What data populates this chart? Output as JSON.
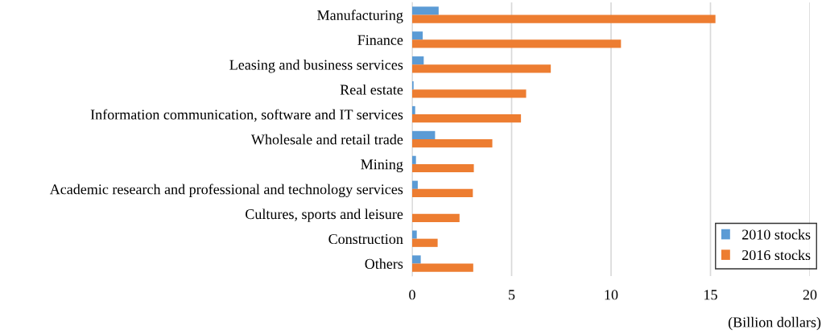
{
  "chart_data": {
    "type": "bar",
    "orientation": "horizontal",
    "xlabel": "(Billion dollars)",
    "categories": [
      "Manufacturing",
      "Finance",
      "Leasing and business services",
      "Real estate",
      "Information communication, software and IT services",
      "Wholesale and retail trade",
      "Mining",
      "Academic research and professional and technology services",
      "Cultures, sports and leisure",
      "Construction",
      "Others"
    ],
    "series": [
      {
        "name": "2010 stocks",
        "color": "#5b9bd5",
        "values": [
          1.33,
          0.53,
          0.58,
          0.07,
          0.15,
          1.15,
          0.19,
          0.28,
          null,
          0.23,
          0.43
        ]
      },
      {
        "name": "2016 stocks",
        "color": "#ed7d31",
        "values": [
          15.25,
          10.5,
          6.97,
          5.73,
          5.47,
          4.03,
          3.1,
          3.05,
          2.38,
          1.28,
          3.07
        ]
      }
    ],
    "xlim": [
      0,
      20
    ],
    "xticks": [
      0,
      5,
      10,
      15,
      20
    ],
    "grid": "x",
    "legend": "bottom right"
  }
}
